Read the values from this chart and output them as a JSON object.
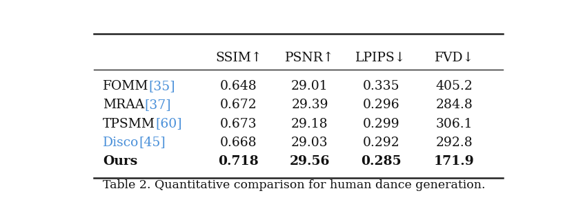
{
  "title": "Table 2. Quantitative comparison for human dance generation.",
  "rows": [
    {
      "method": "FOMM",
      "cite": "[35]",
      "ssim": "0.648",
      "psnr": "29.01",
      "lpips": "0.335",
      "fvd": "405.2",
      "bold": false,
      "disco_blue": false
    },
    {
      "method": "MRAA",
      "cite": "[37]",
      "ssim": "0.672",
      "psnr": "29.39",
      "lpips": "0.296",
      "fvd": "284.8",
      "bold": false,
      "disco_blue": false
    },
    {
      "method": "TPSMM",
      "cite": "[60]",
      "ssim": "0.673",
      "psnr": "29.18",
      "lpips": "0.299",
      "fvd": "306.1",
      "bold": false,
      "disco_blue": false
    },
    {
      "method": "Disco",
      "cite": "[45]",
      "ssim": "0.668",
      "psnr": "29.03",
      "lpips": "0.292",
      "fvd": "292.8",
      "bold": false,
      "disco_blue": true
    },
    {
      "method": "Ours",
      "cite": "",
      "ssim": "0.718",
      "psnr": "29.56",
      "lpips": "0.285",
      "fvd": "171.9",
      "bold": true,
      "disco_blue": false
    }
  ],
  "headers": [
    "SSIM↑",
    "PSNR↑",
    "LPIPS↓",
    "FVD↓"
  ],
  "citation_color": "#4A90D9",
  "disco_color": "#4A90D9",
  "text_color": "#111111",
  "background_color": "#ffffff",
  "line_color": "#222222",
  "title_color": "#111111",
  "fontsize": 13.5,
  "title_fontsize": 12.5
}
